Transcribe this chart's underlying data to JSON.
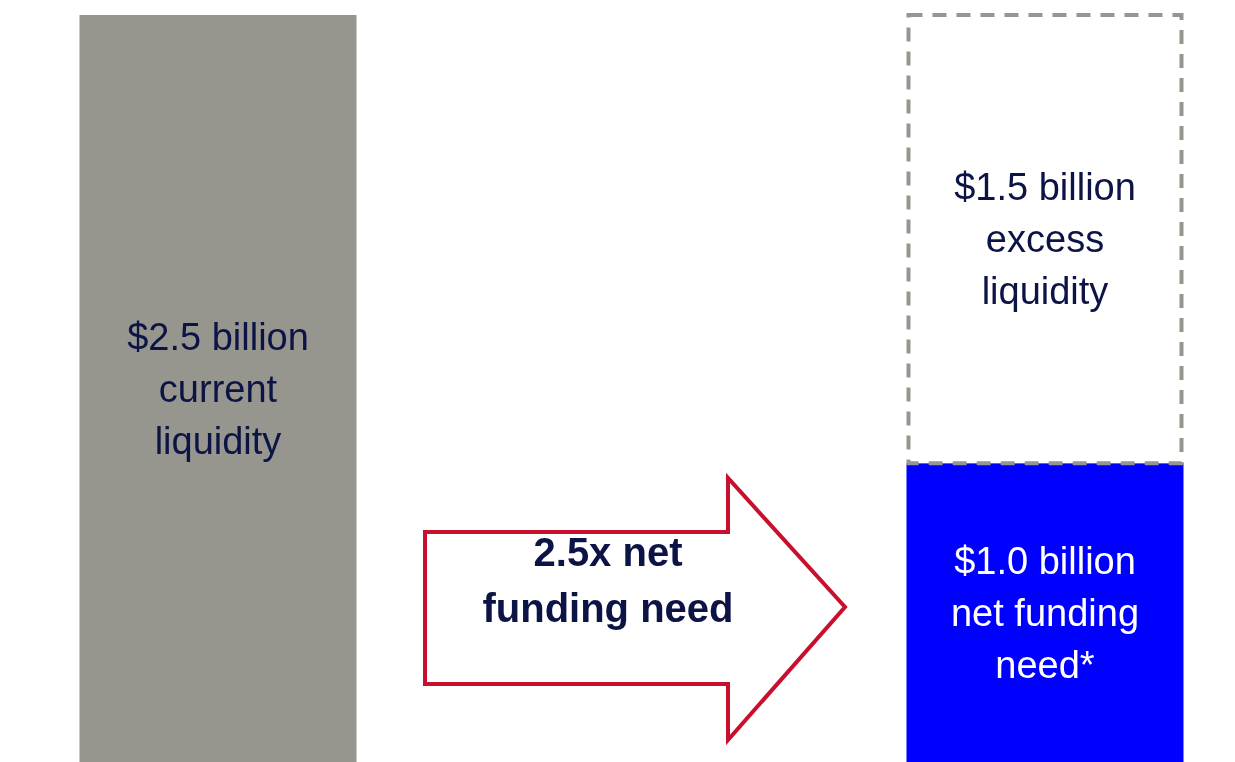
{
  "chart_data": {
    "type": "bar",
    "stacked": true,
    "categories": [
      null,
      null
    ],
    "series": [
      {
        "colors": [
          "#96958e",
          "#0000ff"
        ],
        "values": [
          2.5,
          1.0
        ],
        "value_labels": [
          "$2.5 billion current liquidity",
          "$1.0 billion net funding need*"
        ]
      },
      {
        "color": "#ffffff",
        "line_style": "dashed",
        "values": [
          null,
          1.5
        ],
        "value_labels": [
          null,
          "$1.5 billion excess liquidity"
        ]
      }
    ],
    "annotations": [
      "2.5x net funding need"
    ]
  }
}
